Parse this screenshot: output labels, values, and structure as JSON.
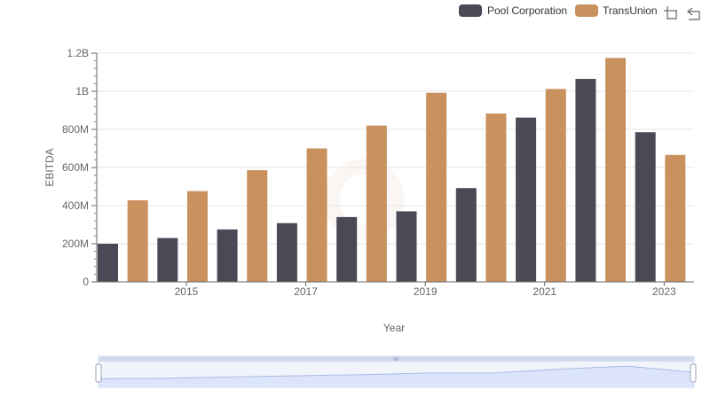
{
  "colors": {
    "pool": "#4a4a57",
    "transunion": "#c8915e",
    "grid": "#e6e6ea",
    "zoom_fill": "#dbe4fb",
    "zoom_line": "#a9bce8"
  },
  "toolbar": {
    "icons": [
      "crop-zoom-icon",
      "reset-zoom-icon"
    ]
  },
  "chart_data": {
    "type": "bar",
    "xlabel": "Year",
    "ylabel": "EBITDA",
    "ylim": [
      0,
      1200000000
    ],
    "y_ticks": [
      {
        "value": 0,
        "label": "0"
      },
      {
        "value": 200000000,
        "label": "200M"
      },
      {
        "value": 400000000,
        "label": "400M"
      },
      {
        "value": 600000000,
        "label": "600M"
      },
      {
        "value": 800000000,
        "label": "800M"
      },
      {
        "value": 1000000000,
        "label": "1B"
      },
      {
        "value": 1200000000,
        "label": "1.2B"
      }
    ],
    "categories": [
      "2014",
      "2015",
      "2016",
      "2017",
      "2018",
      "2019",
      "2020",
      "2021",
      "2022",
      "2023"
    ],
    "x_tick_labels": [
      "2015",
      "2017",
      "2019",
      "2021",
      "2023"
    ],
    "legend_position": "top-right",
    "grid": true,
    "series": [
      {
        "name": "Pool Corporation",
        "values": [
          200000000,
          230000000,
          275000000,
          308000000,
          340000000,
          370000000,
          492000000,
          862000000,
          1065000000,
          785000000
        ]
      },
      {
        "name": "TransUnion",
        "values": [
          428000000,
          476000000,
          586000000,
          700000000,
          820000000,
          992000000,
          883000000,
          1012000000,
          1175000000,
          666000000
        ]
      }
    ]
  }
}
